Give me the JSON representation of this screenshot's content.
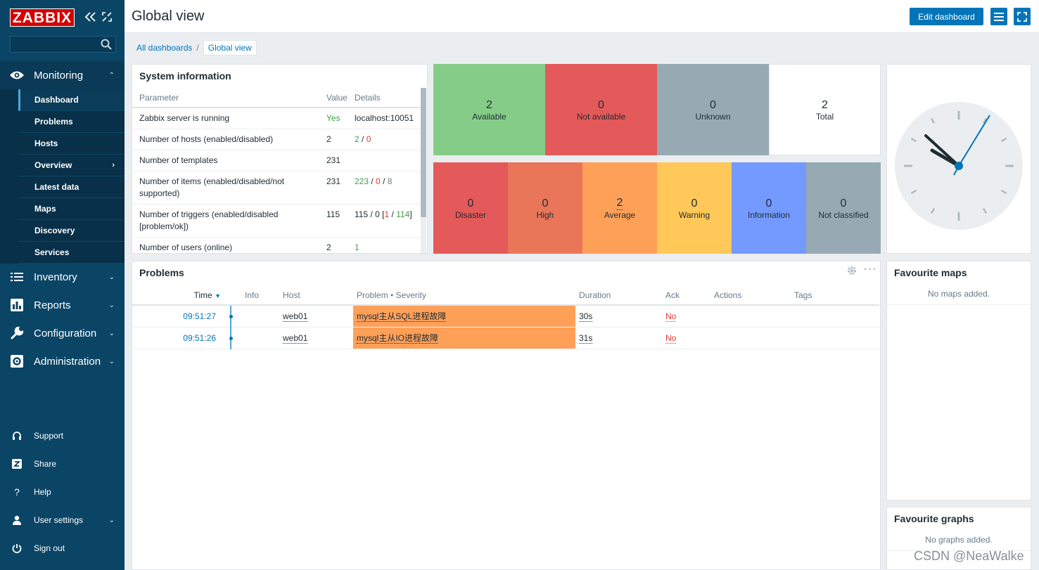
{
  "app": {
    "logo": "ZABBIX"
  },
  "sidebar": {
    "search_placeholder": "",
    "menu": [
      {
        "label": "Monitoring",
        "icon": "eye-icon"
      },
      {
        "label": "Inventory",
        "icon": "list-icon"
      },
      {
        "label": "Reports",
        "icon": "bar-chart-icon"
      },
      {
        "label": "Configuration",
        "icon": "wrench-icon"
      },
      {
        "label": "Administration",
        "icon": "gear-icon"
      }
    ],
    "submenu": [
      "Dashboard",
      "Problems",
      "Hosts",
      "Overview",
      "Latest data",
      "Maps",
      "Discovery",
      "Services"
    ],
    "bottom": [
      {
        "label": "Support",
        "icon": "headset-icon"
      },
      {
        "label": "Share",
        "icon": "share-icon"
      },
      {
        "label": "Help",
        "icon": "help-icon"
      },
      {
        "label": "User settings",
        "icon": "user-icon"
      },
      {
        "label": "Sign out",
        "icon": "power-icon"
      }
    ]
  },
  "header": {
    "title": "Global view",
    "edit_button": "Edit dashboard"
  },
  "breadcrumb": {
    "parent": "All dashboards",
    "separator": "/",
    "current": "Global view"
  },
  "system_info": {
    "title": "System information",
    "columns": [
      "Parameter",
      "Value",
      "Details"
    ],
    "rows": [
      {
        "param": "Zabbix server is running",
        "value": "Yes",
        "d1": "localhost:10051"
      },
      {
        "param": "Number of hosts (enabled/disabled)",
        "value": "2",
        "d1": "2",
        "d2": " / ",
        "d3": "0"
      },
      {
        "param": "Number of templates",
        "value": "231"
      },
      {
        "param": "Number of items (enabled/disabled/not supported)",
        "value": "231",
        "d1": "223",
        "d2": " / ",
        "d3": "0",
        "d4": " / ",
        "d5": "8"
      },
      {
        "param": "Number of triggers (enabled/disabled [problem/ok])",
        "value": "115",
        "d1": "115 / 0 [",
        "d2": "1",
        "d3": " / ",
        "d4": "114",
        "d5": "]"
      },
      {
        "param": "Number of users (online)",
        "value": "2",
        "d1": "1"
      }
    ]
  },
  "host_availability": [
    {
      "count": "2",
      "label": "Available",
      "color": "#86cc89"
    },
    {
      "count": "0",
      "label": "Not available",
      "color": "#e45959"
    },
    {
      "count": "0",
      "label": "Unknown",
      "color": "#97aab3"
    },
    {
      "count": "2",
      "label": "Total",
      "color": "#ffffff"
    }
  ],
  "severity": [
    {
      "count": "0",
      "label": "Disaster",
      "color": "#e45959"
    },
    {
      "count": "0",
      "label": "High",
      "color": "#e97659"
    },
    {
      "count": "2",
      "label": "Average",
      "color": "#ffa059"
    },
    {
      "count": "0",
      "label": "Warning",
      "color": "#ffc859"
    },
    {
      "count": "0",
      "label": "Information",
      "color": "#7499ff"
    },
    {
      "count": "0",
      "label": "Not classified",
      "color": "#97aab3"
    }
  ],
  "problems": {
    "title": "Problems",
    "columns": {
      "time": "Time",
      "info": "Info",
      "host": "Host",
      "problem": "Problem • Severity",
      "duration": "Duration",
      "ack": "Ack",
      "actions": "Actions",
      "tags": "Tags"
    },
    "rows": [
      {
        "time": "09:51:27",
        "host": "web01",
        "problem": "mysql主从SQL进程故障",
        "duration": "30s",
        "ack": "No"
      },
      {
        "time": "09:51:26",
        "host": "web01",
        "problem": "mysql主从IO进程故障",
        "duration": "31s",
        "ack": "No"
      }
    ]
  },
  "favourite_maps": {
    "title": "Favourite maps",
    "empty": "No maps added."
  },
  "favourite_graphs": {
    "title": "Favourite graphs",
    "empty": "No graphs added."
  },
  "watermark": "CSDN @NeaWalke"
}
